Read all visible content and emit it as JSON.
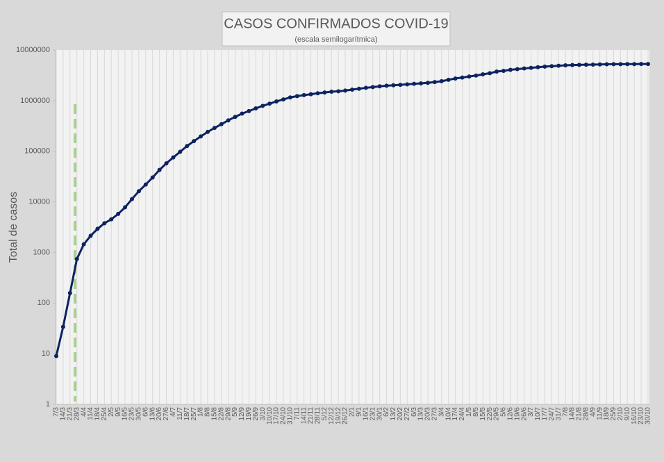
{
  "chart_data": {
    "type": "line",
    "title": "CASOS CONFIRMADOS COVID-19",
    "subtitle": "(escala semilogarítmica)",
    "y_label": "Total de casos",
    "log_scale": true,
    "grid": true,
    "ylim": [
      1,
      10000000
    ],
    "yticks": [
      1,
      10,
      100,
      1000,
      10000,
      100000,
      1000000,
      10000000
    ],
    "categories": [
      "7/3",
      "14/3",
      "21/3",
      "28/3",
      "4/4",
      "11/4",
      "18/4",
      "25/4",
      "2/5",
      "9/5",
      "16/5",
      "23/5",
      "30/5",
      "6/6",
      "13/6",
      "20/6",
      "27/6",
      "4/7",
      "11/7",
      "18/7",
      "25/7",
      "1/8",
      "8/8",
      "15/8",
      "22/8",
      "29/8",
      "5/9",
      "12/9",
      "19/9",
      "26/9",
      "3/10",
      "10/10",
      "17/10",
      "24/10",
      "31/10",
      "7/11",
      "14/11",
      "21/11",
      "28/11",
      "5/12",
      "12/12",
      "19/12",
      "26/12",
      "2/1",
      "9/1",
      "16/1",
      "23/1",
      "30/1",
      "6/2",
      "13/2",
      "20/2",
      "27/2",
      "6/3",
      "13/3",
      "20/3",
      "27/3",
      "3/4",
      "10/4",
      "17/4",
      "24/4",
      "1/5",
      "8/5",
      "15/5",
      "22/5",
      "29/5",
      "5/6",
      "12/6",
      "19/6",
      "26/6",
      "3/7",
      "10/7",
      "17/7",
      "24/7",
      "31/7",
      "7/8",
      "14/8",
      "21/8",
      "28/8",
      "4/9",
      "11/9",
      "18/9",
      "25/9",
      "2/10",
      "9/10",
      "16/10",
      "23/10",
      "30/10"
    ],
    "series": [
      {
        "name": "Casos confirmados",
        "color": "#0d2360",
        "values": [
          9,
          34,
          158,
          745,
          1450,
          2140,
          2930,
          3780,
          4530,
          5780,
          7800,
          11350,
          16200,
          22000,
          30300,
          42800,
          57700,
          75400,
          97500,
          126700,
          158300,
          196500,
          241000,
          289000,
          342000,
          408000,
          478000,
          555000,
          622000,
          703000,
          790000,
          872000,
          965000,
          1055000,
          1157000,
          1228000,
          1285000,
          1340000,
          1400000,
          1450000,
          1500000,
          1530000,
          1580000,
          1650000,
          1720000,
          1790000,
          1850000,
          1920000,
          1970000,
          2010000,
          2050000,
          2100000,
          2150000,
          2190000,
          2250000,
          2330000,
          2420000,
          2580000,
          2740000,
          2860000,
          3000000,
          3130000,
          3310000,
          3480000,
          3750000,
          3880000,
          4070000,
          4200000,
          4320000,
          4450000,
          4580000,
          4700000,
          4800000,
          4900000,
          4980000,
          5040000,
          5090000,
          5120000,
          5140000,
          5200000,
          5230000,
          5250000,
          5260000,
          5270000,
          5280000,
          5290000,
          5300000
        ]
      }
    ]
  }
}
